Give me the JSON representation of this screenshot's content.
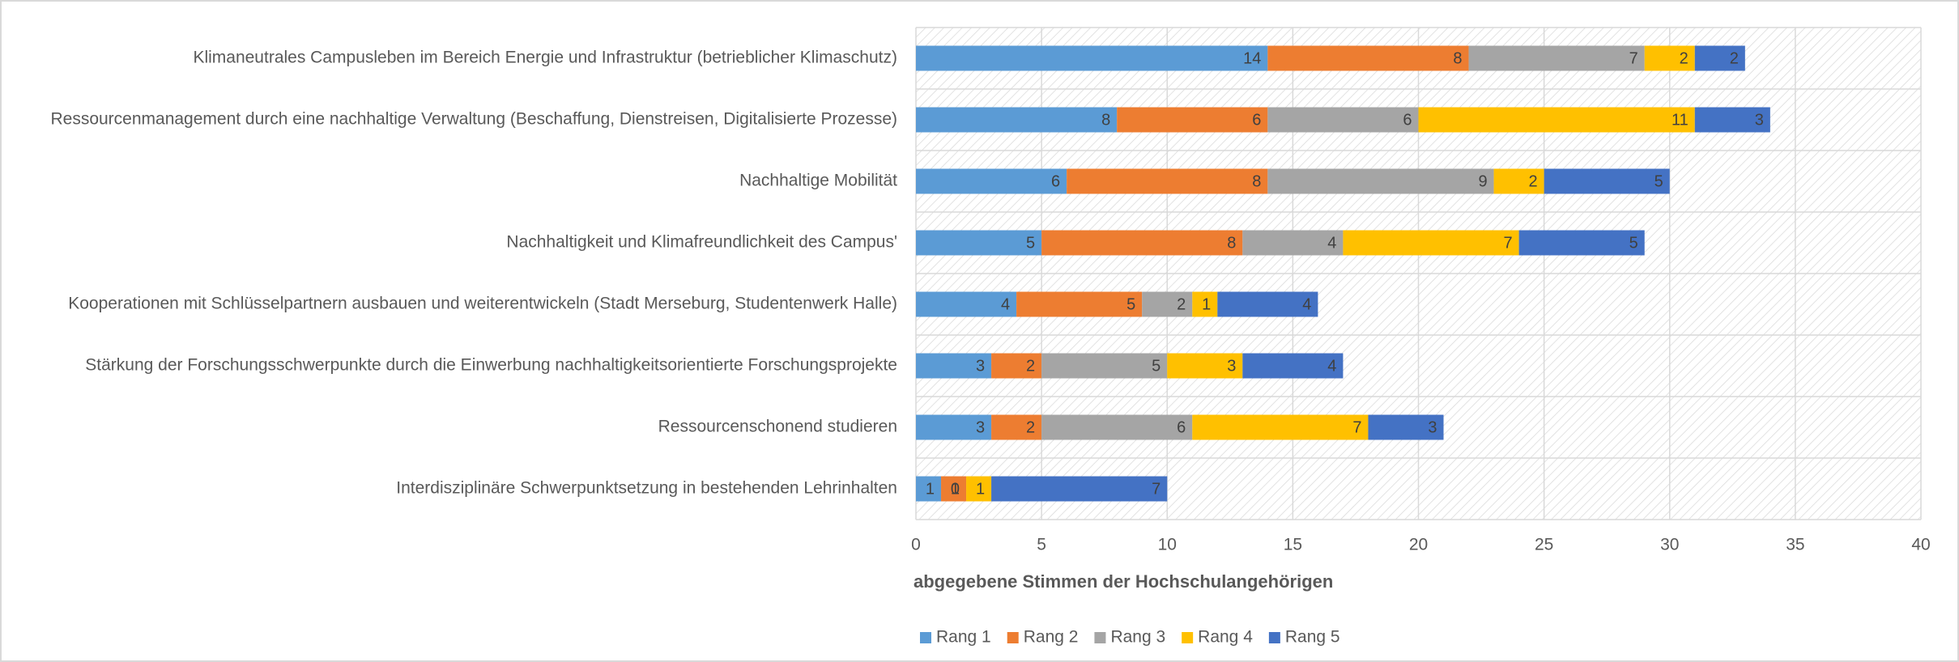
{
  "chart_data": {
    "type": "bar",
    "orientation": "horizontal",
    "stacked": true,
    "categories": [
      "Klimaneutrales Campusleben im Bereich Energie und Infrastruktur (betrieblicher Klimaschutz)",
      "Ressourcenmanagement durch eine nachhaltige Verwaltung (Beschaffung, Dienstreisen, Digitalisierte Prozesse)",
      "Nachhaltige Mobilität",
      "Nachhaltigkeit und Klimafreundlichkeit des Campus'",
      "Kooperationen mit Schlüsselpartnern ausbauen und weiterentwickeln (Stadt Merseburg, Studentenwerk Halle)",
      "Stärkung der Forschungsschwerpunkte durch die Einwerbung nachhaltigkeitsorientierte Forschungsprojekte",
      "Ressourcenschonend studieren",
      "Interdisziplinäre Schwerpunktsetzung in bestehenden Lehrinhalten"
    ],
    "series": [
      {
        "name": "Rang 1",
        "color": "#5b9bd5",
        "values": [
          14,
          8,
          6,
          5,
          4,
          3,
          3,
          1
        ]
      },
      {
        "name": "Rang 2",
        "color": "#ed7d31",
        "values": [
          8,
          6,
          8,
          8,
          5,
          2,
          2,
          1
        ]
      },
      {
        "name": "Rang 3",
        "color": "#a5a5a5",
        "values": [
          7,
          6,
          9,
          4,
          2,
          5,
          6,
          0
        ]
      },
      {
        "name": "Rang 4",
        "color": "#ffc000",
        "values": [
          2,
          11,
          2,
          7,
          1,
          3,
          7,
          1
        ]
      },
      {
        "name": "Rang 5",
        "color": "#4472c4",
        "values": [
          2,
          3,
          5,
          5,
          4,
          4,
          3,
          7
        ]
      }
    ],
    "x_label": "abgegebene Stimmen der Hochschulangehörigen",
    "xlim": [
      0,
      40
    ],
    "xticks": [
      0,
      5,
      10,
      15,
      20,
      25,
      30,
      35,
      40
    ],
    "grid": true,
    "legend": "bottom"
  }
}
